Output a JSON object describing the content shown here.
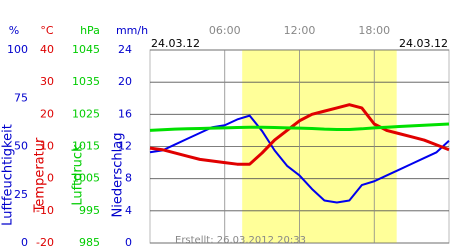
{
  "chart_data": {
    "type": "line",
    "date_left": "24.03.12",
    "date_right": "24.03.12",
    "footer": "Erstellt: 26.03.2012 20:33",
    "xlim": [
      0,
      24
    ],
    "xticks": [
      {
        "value": 6,
        "label": "06:00"
      },
      {
        "value": 12,
        "label": "12:00"
      },
      {
        "value": 18,
        "label": "18:00"
      }
    ],
    "daylight": [
      7.4,
      19.8
    ],
    "axes": [
      {
        "unit": "%",
        "label": "Luftfeuchtigkeit",
        "color": "#0000cc",
        "lim": [
          0,
          100
        ],
        "ticks": [
          100,
          75,
          50,
          25,
          0
        ]
      },
      {
        "unit": "°C",
        "label": "Temperatur",
        "color": "#dd0000",
        "lim": [
          -20,
          40
        ],
        "ticks": [
          40,
          30,
          20,
          10,
          0,
          -10,
          -20
        ]
      },
      {
        "unit": "hPa",
        "label": "Luftdruck",
        "color": "#00cc00",
        "lim": [
          985,
          1045
        ],
        "ticks": [
          1045,
          1035,
          1025,
          1015,
          1005,
          995,
          985
        ]
      },
      {
        "unit": "mm/h",
        "label": "Niederschlag",
        "color": "#0000cc",
        "lim": [
          0,
          24
        ],
        "ticks": [
          24,
          20,
          16,
          12,
          8,
          4,
          0
        ]
      }
    ],
    "x": [
      0,
      1,
      2,
      3,
      4,
      5,
      6,
      7,
      8,
      9,
      10,
      11,
      12,
      13,
      14,
      15,
      16,
      17,
      18,
      19,
      20,
      21,
      22,
      23,
      24
    ],
    "series": [
      {
        "name": "Luftfeuchtigkeit",
        "axis": 0,
        "color": "#0000ee",
        "values": [
          47,
          48,
          51,
          54,
          57,
          60,
          61,
          64,
          66,
          58,
          48,
          40,
          35,
          28,
          22,
          21,
          22,
          30,
          32,
          35,
          38,
          41,
          44,
          47,
          53
        ]
      },
      {
        "name": "Temperatur",
        "axis": 1,
        "color": "#e00000",
        "values": [
          9.5,
          9,
          8,
          7,
          6,
          5.5,
          5,
          4.5,
          4.5,
          8,
          12,
          15,
          18,
          20,
          21,
          22,
          23,
          22,
          17,
          15,
          14,
          13,
          12,
          10.5,
          9
        ]
      },
      {
        "name": "Luftdruck",
        "axis": 2,
        "color": "#00e000",
        "values": [
          1020,
          1020.2,
          1020.4,
          1020.5,
          1020.6,
          1020.7,
          1020.8,
          1020.9,
          1021,
          1021,
          1020.9,
          1020.8,
          1020.7,
          1020.6,
          1020.4,
          1020.3,
          1020.3,
          1020.5,
          1020.8,
          1021,
          1021.2,
          1021.4,
          1021.6,
          1021.8,
          1022
        ]
      }
    ]
  }
}
